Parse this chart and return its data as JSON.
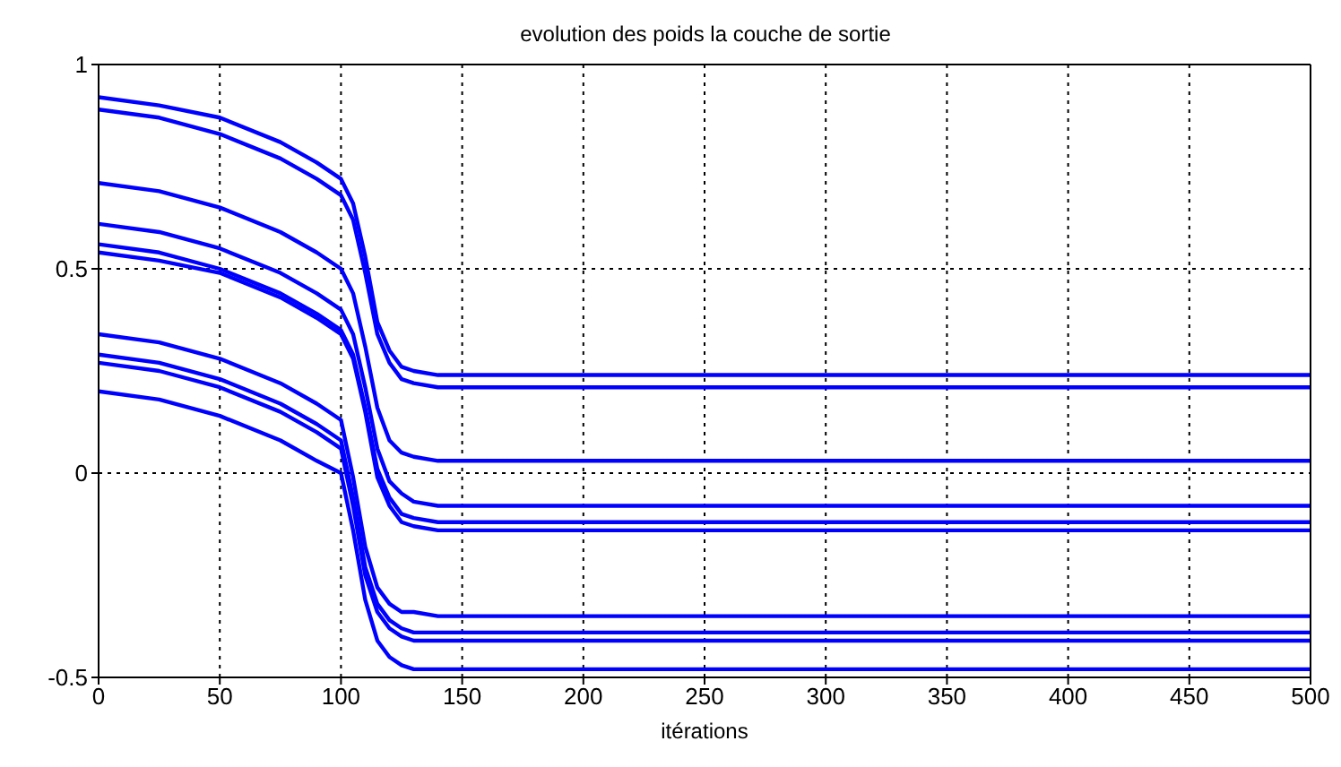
{
  "chart_data": {
    "type": "line",
    "title": "evolution des poids la couche de sortie",
    "xlabel": "itérations",
    "x": [
      0,
      25,
      50,
      75,
      90,
      100,
      105,
      110,
      115,
      120,
      125,
      130,
      140,
      500
    ],
    "series": [
      {
        "color": "#0000ff",
        "values": [
          0.92,
          0.9,
          0.87,
          0.81,
          0.76,
          0.72,
          0.66,
          0.53,
          0.37,
          0.3,
          0.26,
          0.25,
          0.24,
          0.24
        ]
      },
      {
        "color": "#0000ff",
        "values": [
          0.89,
          0.87,
          0.83,
          0.77,
          0.72,
          0.68,
          0.62,
          0.49,
          0.34,
          0.27,
          0.23,
          0.22,
          0.21,
          0.21
        ]
      },
      {
        "color": "#0000ff",
        "values": [
          0.71,
          0.69,
          0.65,
          0.59,
          0.54,
          0.5,
          0.44,
          0.31,
          0.16,
          0.08,
          0.05,
          0.04,
          0.03,
          0.03
        ]
      },
      {
        "color": "#0000ff",
        "values": [
          0.61,
          0.59,
          0.55,
          0.49,
          0.44,
          0.4,
          0.34,
          0.21,
          0.06,
          -0.02,
          -0.05,
          -0.07,
          -0.08,
          -0.08
        ]
      },
      {
        "color": "#0000ff",
        "values": [
          0.56,
          0.54,
          0.5,
          0.44,
          0.39,
          0.35,
          0.29,
          0.16,
          0.01,
          -0.06,
          -0.1,
          -0.11,
          -0.12,
          -0.12
        ]
      },
      {
        "color": "#0000ff",
        "values": [
          0.54,
          0.52,
          0.49,
          0.43,
          0.38,
          0.34,
          0.28,
          0.15,
          -0.01,
          -0.08,
          -0.12,
          -0.13,
          -0.14,
          -0.14
        ]
      },
      {
        "color": "#0000ff",
        "values": [
          0.34,
          0.32,
          0.28,
          0.22,
          0.17,
          0.13,
          -0.01,
          -0.18,
          -0.28,
          -0.32,
          -0.34,
          -0.34,
          -0.35,
          -0.35
        ]
      },
      {
        "color": "#0000ff",
        "values": [
          0.29,
          0.27,
          0.23,
          0.17,
          0.12,
          0.08,
          -0.06,
          -0.23,
          -0.32,
          -0.36,
          -0.38,
          -0.39,
          -0.39,
          -0.39
        ]
      },
      {
        "color": "#0000ff",
        "values": [
          0.27,
          0.25,
          0.21,
          0.15,
          0.1,
          0.06,
          -0.08,
          -0.25,
          -0.34,
          -0.38,
          -0.4,
          -0.41,
          -0.41,
          -0.41
        ]
      },
      {
        "color": "#0000ff",
        "values": [
          0.2,
          0.18,
          0.14,
          0.08,
          0.03,
          0.0,
          -0.14,
          -0.31,
          -0.41,
          -0.45,
          -0.47,
          -0.48,
          -0.48,
          -0.48
        ]
      }
    ],
    "xlim": [
      0,
      500
    ],
    "xticks": [
      0,
      50,
      100,
      150,
      200,
      250,
      300,
      350,
      400,
      450,
      500
    ],
    "ylim": [
      -0.5,
      1
    ],
    "yticks": [
      -0.5,
      0,
      0.5,
      1
    ],
    "grid": true,
    "legend": false,
    "marker": "none",
    "line_style": "solid"
  }
}
